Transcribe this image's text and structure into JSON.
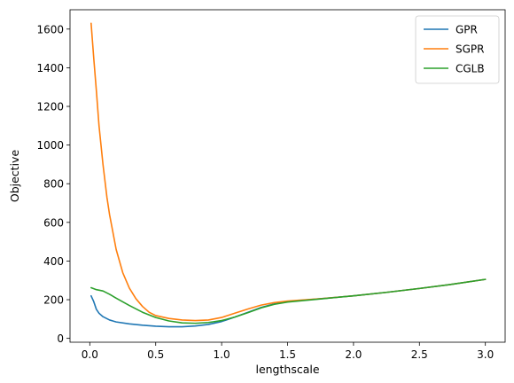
{
  "chart_data": {
    "type": "line",
    "xlabel": "lengthscale",
    "ylabel": "Objective",
    "xlim": [
      -0.15,
      3.15
    ],
    "ylim": [
      -20,
      1700
    ],
    "xticks": [
      0.0,
      0.5,
      1.0,
      1.5,
      2.0,
      2.5,
      3.0
    ],
    "xtick_labels": [
      "0.0",
      "0.5",
      "1.0",
      "1.5",
      "2.0",
      "2.5",
      "3.0"
    ],
    "yticks": [
      0,
      200,
      400,
      600,
      800,
      1000,
      1200,
      1400,
      1600
    ],
    "ytick_labels": [
      "0",
      "200",
      "400",
      "600",
      "800",
      "1000",
      "1200",
      "1400",
      "1600"
    ],
    "grid": false,
    "legend_position": "top-right",
    "series": [
      {
        "name": "GPR",
        "color": "#1f77b4",
        "x": [
          0.01,
          0.03,
          0.05,
          0.07,
          0.1,
          0.15,
          0.2,
          0.3,
          0.4,
          0.5,
          0.6,
          0.7,
          0.8,
          0.9,
          1.0,
          1.1,
          1.2,
          1.3,
          1.4,
          1.5,
          1.75,
          2.0,
          2.25,
          2.5,
          2.75,
          3.0
        ],
        "y": [
          220,
          190,
          150,
          130,
          112,
          95,
          85,
          75,
          68,
          63,
          60,
          60,
          64,
          72,
          87,
          110,
          135,
          160,
          178,
          190,
          205,
          220,
          238,
          258,
          280,
          305
        ]
      },
      {
        "name": "SGPR",
        "color": "#ff7f0e",
        "x": [
          0.01,
          0.03,
          0.05,
          0.07,
          0.1,
          0.13,
          0.15,
          0.2,
          0.25,
          0.3,
          0.35,
          0.4,
          0.45,
          0.5,
          0.6,
          0.7,
          0.8,
          0.9,
          1.0,
          1.1,
          1.2,
          1.3,
          1.4,
          1.5,
          1.75,
          2.0,
          2.25,
          2.5,
          2.75,
          3.0
        ],
        "y": [
          1630,
          1450,
          1280,
          1100,
          900,
          730,
          640,
          460,
          340,
          260,
          205,
          165,
          135,
          118,
          103,
          95,
          92,
          95,
          108,
          130,
          152,
          172,
          185,
          193,
          205,
          220,
          238,
          258,
          280,
          305
        ]
      },
      {
        "name": "CGLB",
        "color": "#2ca02c",
        "x": [
          0.01,
          0.05,
          0.1,
          0.15,
          0.2,
          0.3,
          0.4,
          0.5,
          0.6,
          0.7,
          0.8,
          0.9,
          1.0,
          1.1,
          1.2,
          1.3,
          1.4,
          1.5,
          1.75,
          2.0,
          2.25,
          2.5,
          2.75,
          3.0
        ],
        "y": [
          262,
          252,
          245,
          228,
          208,
          170,
          135,
          108,
          90,
          80,
          78,
          82,
          92,
          110,
          133,
          158,
          176,
          188,
          204,
          220,
          238,
          258,
          280,
          305
        ]
      }
    ]
  }
}
